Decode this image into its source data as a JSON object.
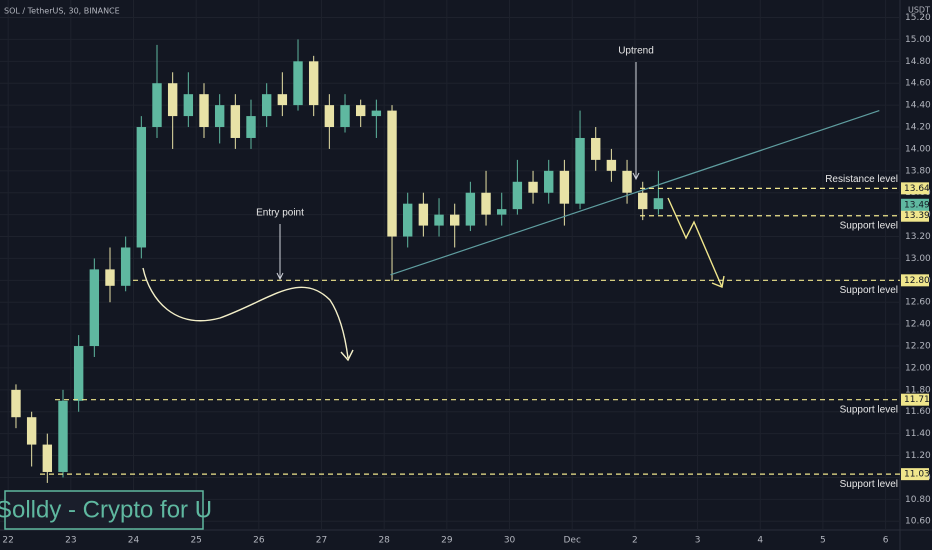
{
  "chart_data": {
    "type": "candlestick",
    "title": "SOL / TetherUS, 30, BINANCE",
    "y_unit": "USDT",
    "watermark": "Solldy - Crypto for U",
    "up_color": "#5fb8a0",
    "down_color": "#e8e2a6",
    "x": [
      22.125,
      22.375,
      22.625,
      22.875,
      23.125,
      23.375,
      23.625,
      23.875,
      24.125,
      24.375,
      24.625,
      24.875,
      25.125,
      25.375,
      25.625,
      25.875,
      26.125,
      26.375,
      26.625,
      26.875,
      27.125,
      27.375,
      27.625,
      27.875,
      28.125,
      28.375,
      28.625,
      28.875,
      29.125,
      29.375,
      29.625,
      29.875,
      30.125,
      30.375,
      30.625,
      30.875,
      31.125,
      31.375,
      31.625,
      31.875,
      32.125,
      32.375
    ],
    "open": [
      11.8,
      11.55,
      11.3,
      11.05,
      11.7,
      12.2,
      12.9,
      12.75,
      13.1,
      14.2,
      14.6,
      14.3,
      14.5,
      14.2,
      14.4,
      14.1,
      14.3,
      14.5,
      14.4,
      14.8,
      14.4,
      14.2,
      14.4,
      14.3,
      14.35,
      13.2,
      13.5,
      13.3,
      13.4,
      13.3,
      13.6,
      13.4,
      13.45,
      13.7,
      13.6,
      13.8,
      13.5,
      14.1,
      13.9,
      13.8,
      13.6,
      13.45
    ],
    "high": [
      11.85,
      11.6,
      11.4,
      11.8,
      12.3,
      13.0,
      13.1,
      13.2,
      14.3,
      14.95,
      14.7,
      14.7,
      14.6,
      14.5,
      14.5,
      14.45,
      14.6,
      14.7,
      15.0,
      14.85,
      14.5,
      14.5,
      14.45,
      14.45,
      14.4,
      13.6,
      13.6,
      13.55,
      13.5,
      13.7,
      13.8,
      13.6,
      13.9,
      13.8,
      13.9,
      13.9,
      14.35,
      14.2,
      14.0,
      13.9,
      13.7,
      13.8
    ],
    "low": [
      11.45,
      11.1,
      10.95,
      11.0,
      11.6,
      12.1,
      12.6,
      12.7,
      13.0,
      14.1,
      14.0,
      14.2,
      14.1,
      14.05,
      14.0,
      14.0,
      14.2,
      14.3,
      14.35,
      14.3,
      14.0,
      14.15,
      14.2,
      14.1,
      12.8,
      13.1,
      13.2,
      13.2,
      13.1,
      13.25,
      13.3,
      13.3,
      13.4,
      13.5,
      13.5,
      13.3,
      13.45,
      13.8,
      13.7,
      13.5,
      13.35,
      13.4
    ],
    "close": [
      11.55,
      11.3,
      11.05,
      11.7,
      12.2,
      12.9,
      12.75,
      13.1,
      14.2,
      14.6,
      14.3,
      14.5,
      14.2,
      14.4,
      14.1,
      14.3,
      14.5,
      14.4,
      14.8,
      14.4,
      14.2,
      14.4,
      14.3,
      14.35,
      13.2,
      13.5,
      13.3,
      13.4,
      13.3,
      13.6,
      13.4,
      13.45,
      13.7,
      13.6,
      13.8,
      13.5,
      14.1,
      13.9,
      13.8,
      13.6,
      13.45,
      13.55
    ],
    "last_price": 13.49,
    "xlim": [
      21.87,
      36.23
    ],
    "xticks": [
      22,
      23,
      24,
      25,
      26,
      27,
      28,
      29,
      30,
      {
        "value": 31,
        "label": "Dec"
      },
      {
        "value": 32,
        "label": "2"
      },
      {
        "value": 33,
        "label": "3"
      },
      {
        "value": 34,
        "label": "4"
      },
      {
        "value": 35,
        "label": "5"
      },
      {
        "value": 36,
        "label": "6"
      }
    ],
    "ylim": [
      10.52,
      15.36
    ],
    "yticks": [
      {
        "value": 10.6,
        "label": "10.60"
      },
      {
        "value": 10.8,
        "label": "10.80"
      },
      {
        "value": 11.0,
        "label": "11.00"
      },
      {
        "value": 11.2,
        "label": "11.20"
      },
      {
        "value": 11.4,
        "label": "11.40"
      },
      {
        "value": 11.6,
        "label": "11.60"
      },
      {
        "value": 11.8,
        "label": "11.80"
      },
      {
        "value": 12.0,
        "label": "12.00"
      },
      {
        "value": 12.2,
        "label": "12.20"
      },
      {
        "value": 12.4,
        "label": "12.40"
      },
      {
        "value": 12.6,
        "label": "12.60"
      },
      {
        "value": 12.8,
        "label": "12.80"
      },
      {
        "value": 13.0,
        "label": "13.00"
      },
      {
        "value": 13.2,
        "label": "13.20"
      },
      {
        "value": 13.4,
        "label": "13.40"
      },
      {
        "value": 13.6,
        "label": "13.60"
      },
      {
        "value": 13.8,
        "label": "13.80"
      },
      {
        "value": 14.0,
        "label": "14.00"
      },
      {
        "value": 14.2,
        "label": "14.20"
      },
      {
        "value": 14.4,
        "label": "14.40"
      },
      {
        "value": 14.6,
        "label": "14.60"
      },
      {
        "value": 14.8,
        "label": "14.80"
      },
      {
        "value": 15.0,
        "label": "15.00"
      },
      {
        "value": 15.2,
        "label": "15.20"
      }
    ],
    "grid": true,
    "levels": [
      {
        "value": 13.64,
        "text": "Resistance level"
      },
      {
        "value": 13.39,
        "text": "Support level"
      },
      {
        "value": 12.8,
        "label": "12.80",
        "text": "Support level"
      },
      {
        "value": 11.71,
        "text": "Support level"
      },
      {
        "value": 11.03,
        "text": "Support level"
      }
    ],
    "trendline": {
      "x": [
        28.1,
        35.9
      ],
      "y": [
        12.85,
        14.35
      ]
    },
    "annotations": [
      "Entry point",
      "Uptrend"
    ]
  }
}
